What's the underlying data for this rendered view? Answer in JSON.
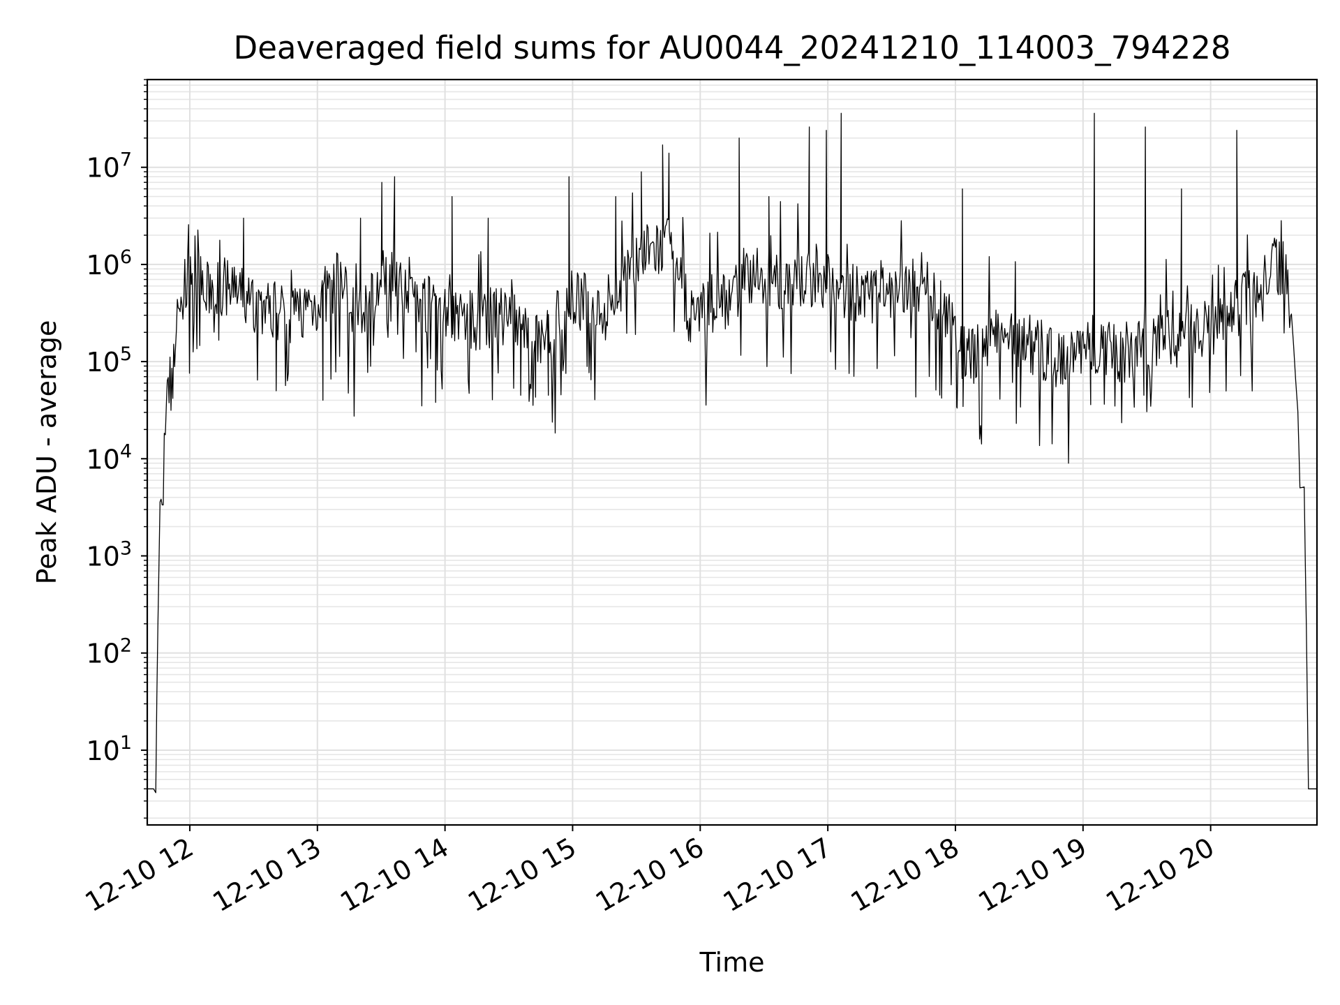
{
  "chart_data": {
    "type": "line",
    "title": "Deaveraged field sums for AU0044_20241210_114003_794228",
    "xlabel": "Time",
    "ylabel": "Peak ADU - average",
    "yscale": "log",
    "grid": true,
    "xlim": [
      "12-10 11:40",
      "12-10 20:50"
    ],
    "ylim": [
      1.7,
      80000000
    ],
    "x_ticks": [
      {
        "label": "12-10 12",
        "value": "12-10 12:00"
      },
      {
        "label": "12-10 13",
        "value": "12-10 13:00"
      },
      {
        "label": "12-10 14",
        "value": "12-10 14:00"
      },
      {
        "label": "12-10 15",
        "value": "12-10 15:00"
      },
      {
        "label": "12-10 16",
        "value": "12-10 16:00"
      },
      {
        "label": "12-10 17",
        "value": "12-10 17:00"
      },
      {
        "label": "12-10 18",
        "value": "12-10 18:00"
      },
      {
        "label": "12-10 19",
        "value": "12-10 19:00"
      },
      {
        "label": "12-10 20",
        "value": "12-10 20:00"
      }
    ],
    "y_ticks": [
      {
        "base": "10",
        "exp": "1",
        "value": 10
      },
      {
        "base": "10",
        "exp": "2",
        "value": 100
      },
      {
        "base": "10",
        "exp": "3",
        "value": 1000
      },
      {
        "base": "10",
        "exp": "4",
        "value": 10000
      },
      {
        "base": "10",
        "exp": "5",
        "value": 100000
      },
      {
        "base": "10",
        "exp": "6",
        "value": 1000000
      },
      {
        "base": "10",
        "exp": "7",
        "value": 10000000
      }
    ],
    "series": [
      {
        "color": "#000000",
        "points": [
          [
            "12-10 11:40",
            4
          ],
          [
            "12-10 11:44",
            4
          ],
          [
            "12-10 11:45",
            250
          ],
          [
            "12-10 11:46",
            2500
          ],
          [
            "12-10 11:47",
            4000
          ],
          [
            "12-10 11:48",
            10000
          ],
          [
            "12-10 11:49",
            30000
          ],
          [
            "12-10 11:52",
            100000
          ],
          [
            "12-10 11:55",
            350000
          ],
          [
            "12-10 11:59",
            700000
          ],
          [
            "12-10 12:02",
            1100000
          ],
          [
            "12-10 12:06",
            500000
          ],
          [
            "12-10 12:15",
            600000
          ],
          [
            "12-10 12:30",
            400000
          ],
          [
            "12-10 12:45",
            300000
          ],
          [
            "12-10 13:00",
            400000
          ],
          [
            "12-10 13:10",
            700000
          ],
          [
            "12-10 13:20",
            300000
          ],
          [
            "12-10 13:35",
            1000000
          ],
          [
            "12-10 13:50",
            400000
          ],
          [
            "12-10 14:00",
            350000
          ],
          [
            "12-10 14:15",
            250000
          ],
          [
            "12-10 14:30",
            300000
          ],
          [
            "12-10 14:40",
            150000
          ],
          [
            "12-10 14:50",
            200000
          ],
          [
            "12-10 15:00",
            450000
          ],
          [
            "12-10 15:15",
            350000
          ],
          [
            "12-10 15:30",
            1200000
          ],
          [
            "12-10 15:45",
            1500000
          ],
          [
            "12-10 15:55",
            300000
          ],
          [
            "12-10 16:10",
            400000
          ],
          [
            "12-10 16:25",
            800000
          ],
          [
            "12-10 16:40",
            600000
          ],
          [
            "12-10 17:00",
            700000
          ],
          [
            "12-10 17:15",
            450000
          ],
          [
            "12-10 17:30",
            500000
          ],
          [
            "12-10 17:45",
            600000
          ],
          [
            "12-10 17:58",
            300000
          ],
          [
            "12-10 18:05",
            100000
          ],
          [
            "12-10 18:20",
            200000
          ],
          [
            "12-10 18:35",
            150000
          ],
          [
            "12-10 18:50",
            100000
          ],
          [
            "12-10 19:05",
            150000
          ],
          [
            "12-10 19:20",
            120000
          ],
          [
            "12-10 19:35",
            150000
          ],
          [
            "12-10 19:50",
            200000
          ],
          [
            "12-10 20:05",
            250000
          ],
          [
            "12-10 20:20",
            500000
          ],
          [
            "12-10 20:30",
            1000000
          ],
          [
            "12-10 20:35",
            900000
          ],
          [
            "12-10 20:38",
            300000
          ],
          [
            "12-10 20:41",
            30000
          ],
          [
            "12-10 20:42",
            5500
          ],
          [
            "12-10 20:44",
            5000
          ],
          [
            "12-10 20:45",
            200
          ],
          [
            "12-10 20:46",
            4
          ],
          [
            "12-10 20:50",
            4
          ]
        ],
        "spikes": [
          [
            "12-10 12:25",
            3000000
          ],
          [
            "12-10 13:20",
            3000000
          ],
          [
            "12-10 13:30",
            7000000
          ],
          [
            "12-10 13:36",
            8000000
          ],
          [
            "12-10 14:03",
            5000000
          ],
          [
            "12-10 14:20",
            3000000
          ],
          [
            "12-10 14:58",
            8000000
          ],
          [
            "12-10 15:20",
            5000000
          ],
          [
            "12-10 15:32",
            9000000
          ],
          [
            "12-10 15:42",
            17000000
          ],
          [
            "12-10 15:45",
            14000000
          ],
          [
            "12-10 16:18",
            20000000
          ],
          [
            "12-10 16:32",
            5000000
          ],
          [
            "12-10 16:51",
            26000000
          ],
          [
            "12-10 16:59",
            24000000
          ],
          [
            "12-10 17:06",
            36000000
          ],
          [
            "12-10 18:03",
            6000000
          ],
          [
            "12-10 19:05",
            36000000
          ],
          [
            "12-10 19:29",
            26000000
          ],
          [
            "12-10 19:46",
            6000000
          ],
          [
            "12-10 20:12",
            24000000
          ]
        ],
        "lows": [
          [
            "12-10 12:40",
            50000
          ],
          [
            "12-10 13:02",
            40000
          ],
          [
            "12-10 13:55",
            38000
          ],
          [
            "12-10 14:35",
            45000
          ],
          [
            "12-10 14:42",
            43000
          ],
          [
            "12-10 14:48",
            45000
          ],
          [
            "12-10 18:00",
            34000
          ],
          [
            "12-10 18:30",
            34000
          ],
          [
            "12-10 19:03",
            36000
          ],
          [
            "12-10 19:28",
            45000
          ]
        ]
      }
    ]
  }
}
